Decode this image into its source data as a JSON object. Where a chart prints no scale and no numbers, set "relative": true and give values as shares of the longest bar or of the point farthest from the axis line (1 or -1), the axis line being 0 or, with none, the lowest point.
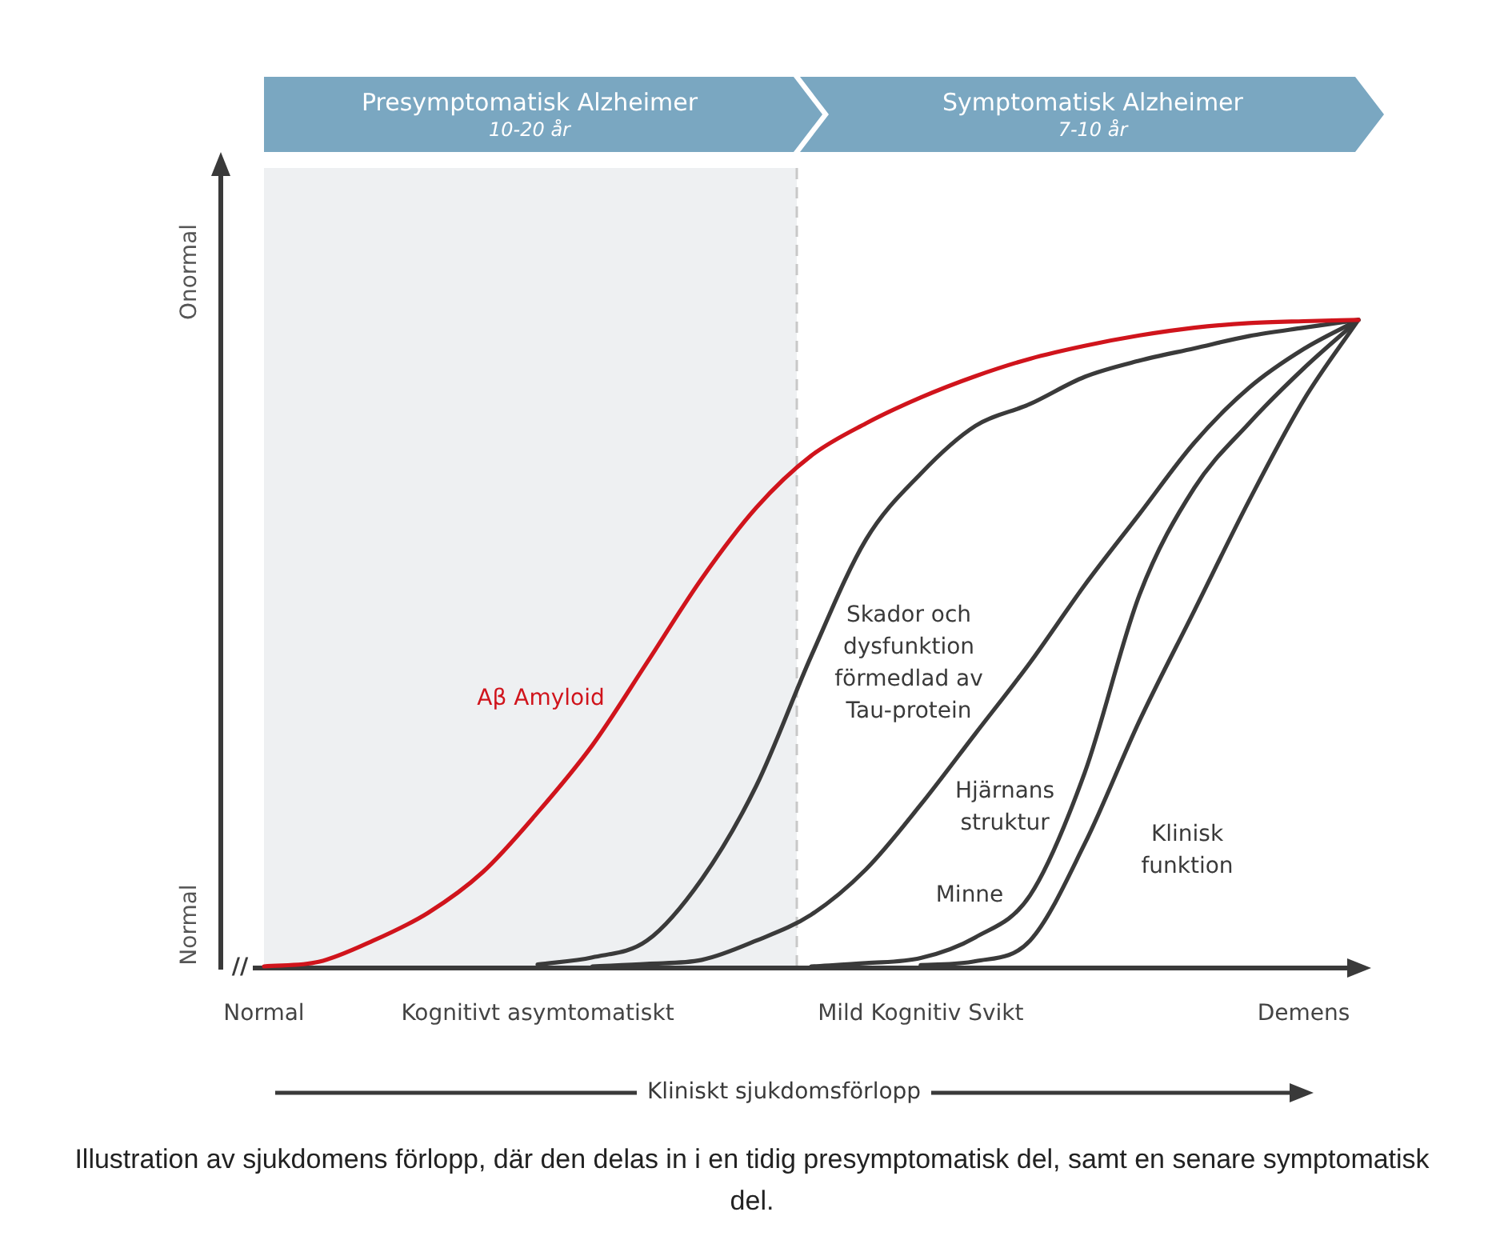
{
  "chart_data": {
    "type": "line",
    "relative": true,
    "xlabel": "Kliniskt sjukdomsförlopp",
    "categories": [
      "Normal",
      null,
      null,
      null,
      null,
      "Kognitivt asymtomatiskt",
      null,
      null,
      null,
      null,
      null,
      null,
      "Mild Kognitiv Svikt",
      null,
      null,
      null,
      null,
      null,
      null,
      "Demens",
      null
    ],
    "series": [
      {
        "name": "Aβ Amyloid",
        "color": "#d0141c",
        "values": [
          0,
          0.007,
          0.04,
          0.083,
          0.146,
          0.238,
          0.342,
          0.47,
          0.6,
          0.71,
          0.79,
          0.84,
          0.88,
          0.913,
          0.94,
          0.96,
          0.976,
          0.988,
          0.995,
          0.998,
          1
        ]
      },
      {
        "name": "Skador och dysfunktion förmedlad av Tau-protein",
        "color": "#3a3a3a",
        "values": [
          null,
          null,
          null,
          null,
          null,
          0.003,
          0.014,
          0.04,
          0.135,
          0.28,
          0.48,
          0.66,
          0.762,
          0.836,
          0.87,
          0.912,
          0.937,
          0.956,
          0.975,
          0.988,
          1
        ]
      },
      {
        "name": "Hjärnans struktur",
        "color": "#3a3a3a",
        "values": [
          null,
          null,
          null,
          null,
          null,
          null,
          0,
          0.004,
          0.01,
          0.04,
          0.08,
          0.15,
          0.25,
          0.36,
          0.47,
          0.59,
          0.7,
          0.81,
          0.895,
          0.955,
          1
        ]
      },
      {
        "name": "Minne",
        "color": "#3a3a3a",
        "values": [
          null,
          null,
          null,
          null,
          null,
          null,
          null,
          null,
          null,
          null,
          0,
          0.005,
          0.013,
          0.045,
          0.11,
          0.3,
          0.575,
          0.74,
          0.84,
          0.925,
          1
        ]
      },
      {
        "name": "Klinisk funktion",
        "color": "#3a3a3a",
        "values": [
          null,
          null,
          null,
          null,
          null,
          null,
          null,
          null,
          null,
          null,
          null,
          null,
          0.002,
          0.008,
          0.04,
          0.19,
          0.38,
          0.55,
          0.72,
          0.876,
          1
        ]
      }
    ],
    "annotations": [
      "Onormal",
      "Normal",
      "//",
      "Illustration av sjukdomens förlopp, där den delas in i en tidig presymptomatisk del, samt en senare symptomatisk del.",
      "Presymptomatisk Alzheimer",
      "10-20 år",
      "Symptomatisk Alzheimer",
      "7-10 år"
    ],
    "legend": false,
    "marker": "none",
    "line_style": "solid"
  }
}
